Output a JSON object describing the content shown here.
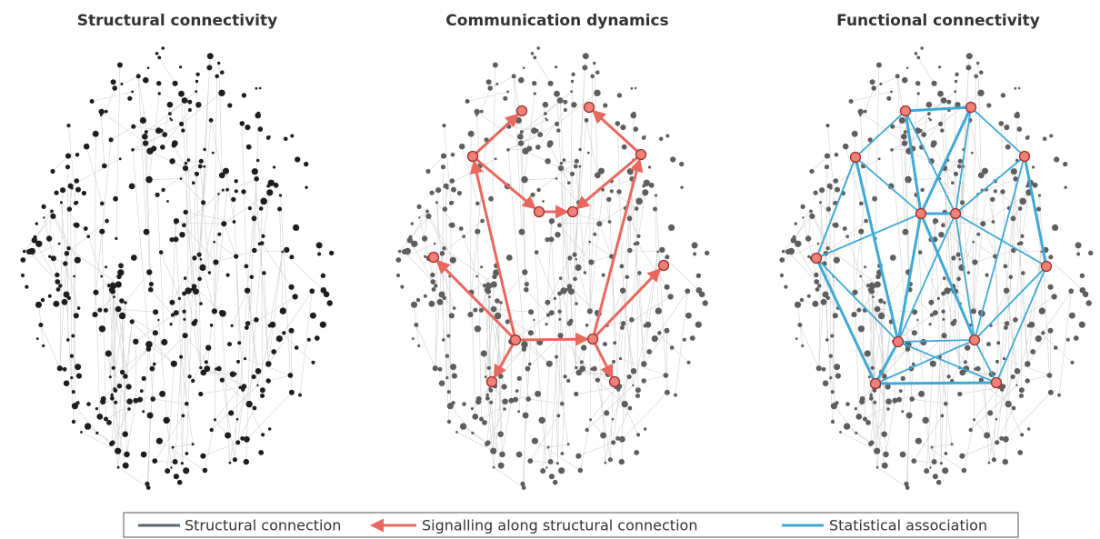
{
  "panels": [
    {
      "title": "Structural connectivity"
    },
    {
      "title": "Communication dynamics"
    },
    {
      "title": "Functional connectivity"
    }
  ],
  "legend": [
    {
      "label": "Structural connection"
    },
    {
      "label": "Signalling along structural connection"
    },
    {
      "label": "Statistical association"
    }
  ]
}
